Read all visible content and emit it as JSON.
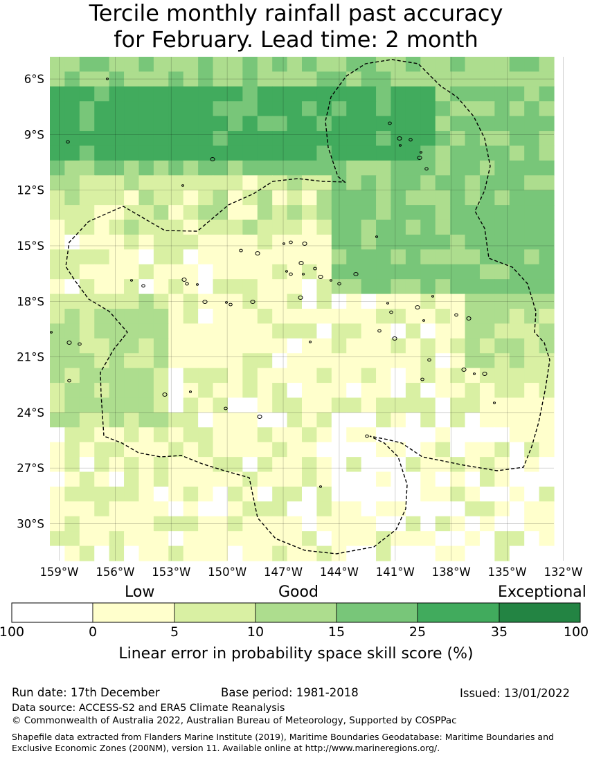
{
  "title": {
    "line1": "Tercile monthly rainfall past accuracy",
    "line2": "for February. Lead time: 2 month"
  },
  "map": {
    "lat_labels": [
      "6°S",
      "9°S",
      "12°S",
      "15°S",
      "18°S",
      "21°S",
      "24°S",
      "27°S",
      "30°S"
    ],
    "lon_labels": [
      "159°W",
      "156°W",
      "153°W",
      "150°W",
      "147°W",
      "144°W",
      "141°W",
      "138°W",
      "135°W",
      "132°W"
    ],
    "lon_range": [
      -159.5,
      -132.5
    ],
    "lat_range": [
      -32.0,
      -4.8
    ],
    "region_description_colors": {
      "north_band": "#3aa85a",
      "central": "#ffffcc",
      "east": "#78c679"
    }
  },
  "legend": {
    "categories": [
      "Low",
      "Good",
      "Exceptional"
    ],
    "ticks": [
      "100",
      "0",
      "5",
      "10",
      "15",
      "25",
      "35",
      "100"
    ],
    "colors": [
      "#ffffff",
      "#ffffcc",
      "#d9f0a3",
      "#addd8e",
      "#78c679",
      "#41ab5d",
      "#238443"
    ],
    "title": "Linear error in probability space skill score (%)"
  },
  "footer": {
    "run_date": "Run date: 17th December",
    "base_period": "Base period: 1981-2018",
    "issued": "Issued: 13/01/2022",
    "data_source": "Data source: ACCESS-S2 and ERA5 Climate Reanalysis",
    "copyright": "© Commonwealth of Australia 2022, Australian Bureau of Meteorology, Supported by COSPPac",
    "shapefile": "Shapefile data extracted from Flanders Marine Institute (2019), Maritime Boundaries Geodatabase: Maritime Boundaries and Exclusive Economic Zones (200NM), version 11. Available online at http://www.marineregions.org/."
  }
}
